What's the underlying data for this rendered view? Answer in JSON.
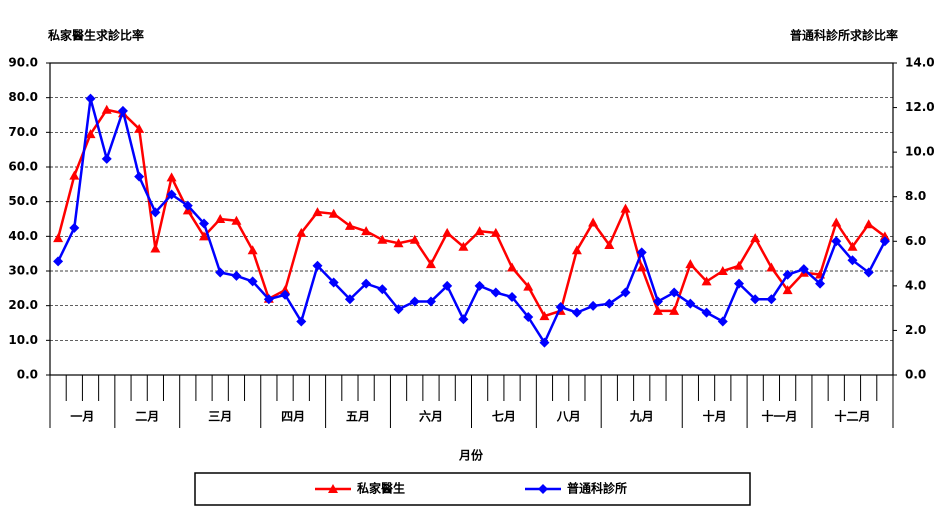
{
  "chart_data": {
    "type": "line",
    "title_left": "私家醫生求診比率",
    "title_right": "普通科診所求診比率",
    "x_label": "月份",
    "month_groups": [
      {
        "label": "一月",
        "weeks": 4
      },
      {
        "label": "二月",
        "weeks": 4
      },
      {
        "label": "三月",
        "weeks": 5
      },
      {
        "label": "四月",
        "weeks": 4
      },
      {
        "label": "五月",
        "weeks": 4
      },
      {
        "label": "六月",
        "weeks": 5
      },
      {
        "label": "七月",
        "weeks": 4
      },
      {
        "label": "八月",
        "weeks": 4
      },
      {
        "label": "九月",
        "weeks": 5
      },
      {
        "label": "十月",
        "weeks": 4
      },
      {
        "label": "十一月",
        "weeks": 4
      },
      {
        "label": "十二月",
        "weeks": 5
      }
    ],
    "series": [
      {
        "name": "私家醫生",
        "color": "#ff0000",
        "marker": "triangle",
        "axis": "y",
        "values": [
          39.5,
          57.5,
          69.5,
          76.5,
          75.5,
          71,
          36.5,
          57,
          47.5,
          40,
          45,
          44.5,
          36,
          22,
          24.5,
          41,
          47,
          46.5,
          43,
          41.5,
          39,
          38,
          39,
          32,
          41,
          37,
          41.5,
          41,
          31,
          25.5,
          17,
          18.5,
          36,
          44,
          37.5,
          48,
          31,
          18.5,
          18.5,
          32,
          27,
          30,
          31.5,
          39.5,
          31,
          24.5,
          29.5,
          29,
          44,
          37,
          43.5,
          40
        ]
      },
      {
        "name": "普通科診所",
        "color": "#0000ff",
        "marker": "diamond",
        "axis": "y2",
        "values": [
          5.1,
          6.6,
          12.4,
          9.7,
          11.85,
          8.9,
          7.3,
          8.1,
          7.6,
          6.8,
          4.6,
          4.45,
          4.2,
          3.4,
          3.6,
          2.4,
          4.9,
          4.15,
          3.4,
          4.1,
          3.85,
          2.95,
          3.3,
          3.3,
          4.0,
          2.5,
          4.0,
          3.7,
          3.5,
          2.6,
          1.45,
          3.05,
          2.8,
          3.1,
          3.2,
          3.7,
          5.5,
          3.3,
          3.7,
          3.2,
          2.8,
          2.4,
          4.1,
          3.4,
          3.4,
          4.5,
          4.75,
          4.1,
          6.0,
          5.15,
          4.6,
          6.0
        ]
      }
    ],
    "ylim": [
      0,
      90
    ],
    "yticks": [
      {
        "value": 0,
        "label": "0.0"
      },
      {
        "value": 10,
        "label": "10.0"
      },
      {
        "value": 20,
        "label": "20.0"
      },
      {
        "value": 30,
        "label": "30.0"
      },
      {
        "value": 40,
        "label": "40.0"
      },
      {
        "value": 50,
        "label": "50.0"
      },
      {
        "value": 60,
        "label": "60.0"
      },
      {
        "value": 70,
        "label": "70.0"
      },
      {
        "value": 80,
        "label": "80.0"
      },
      {
        "value": 90,
        "label": "90.0"
      }
    ],
    "y2lim": [
      0,
      14
    ],
    "y2ticks": [
      {
        "value": 0,
        "label": "0.0"
      },
      {
        "value": 2,
        "label": "2.0"
      },
      {
        "value": 4,
        "label": "4.0"
      },
      {
        "value": 6,
        "label": "6.0"
      },
      {
        "value": 8,
        "label": "8.0"
      },
      {
        "value": 10,
        "label": "10.0"
      },
      {
        "value": 12,
        "label": "12.0"
      },
      {
        "value": 14,
        "label": "14.0"
      }
    ],
    "grid": true
  }
}
